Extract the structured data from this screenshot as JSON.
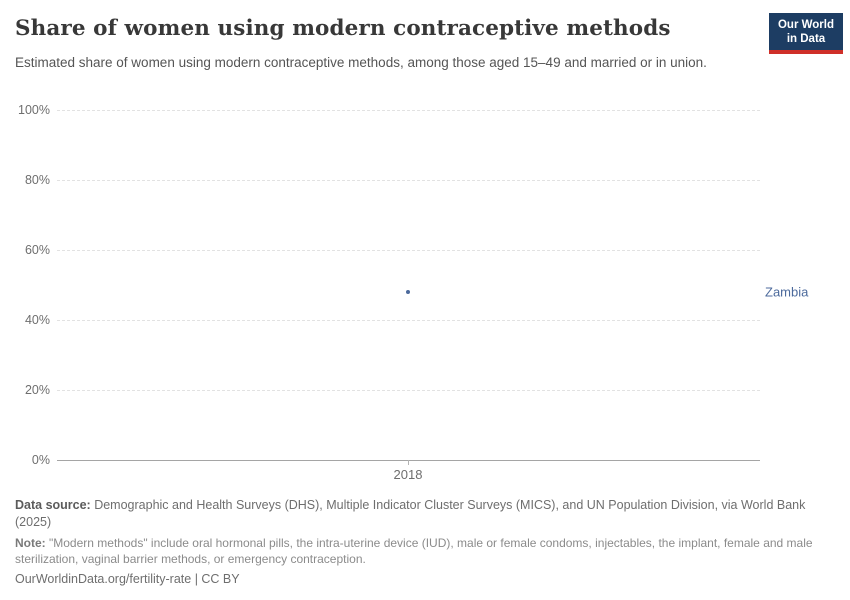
{
  "header": {
    "title": "Share of women using modern contraceptive methods",
    "subtitle": "Estimated share of women using modern contraceptive methods, among those aged 15–49 and married or in union.",
    "logo_line1": "Our World",
    "logo_line2": "in Data"
  },
  "chart_data": {
    "type": "scatter",
    "series": [
      {
        "name": "Zambia",
        "x": [
          2018
        ],
        "values": [
          48
        ]
      }
    ],
    "entity_label": "Zambia",
    "x_tick_labels": [
      "2018"
    ],
    "y_tick_labels_top_to_bottom": [
      "100%",
      "80%",
      "60%",
      "40%",
      "20%",
      "0%"
    ],
    "ylim": [
      0,
      100
    ],
    "xlabel": "",
    "ylabel": "",
    "grid": "horizontal-dashed",
    "legend_position": "right-of-point",
    "point_color": "#4C6A9C"
  },
  "colors": {
    "logo_navy": "#1d3d63",
    "logo_red": "#cf2f29",
    "series_blue": "#4C6A9C"
  },
  "footer": {
    "data_source_label": "Data source:",
    "data_source_text": " Demographic and Health Surveys (DHS), Multiple Indicator Cluster Surveys (MICS), and UN Population Division, via World Bank (2025)",
    "note_label": "Note:",
    "note_text": " \"Modern methods\" include oral hormonal pills, the intra-uterine device (IUD), male or female condoms, injectables, the implant, female and male sterilization, vaginal barrier methods, or emergency contraception.",
    "license_line": "OurWorldinData.org/fertility-rate | CC BY"
  }
}
